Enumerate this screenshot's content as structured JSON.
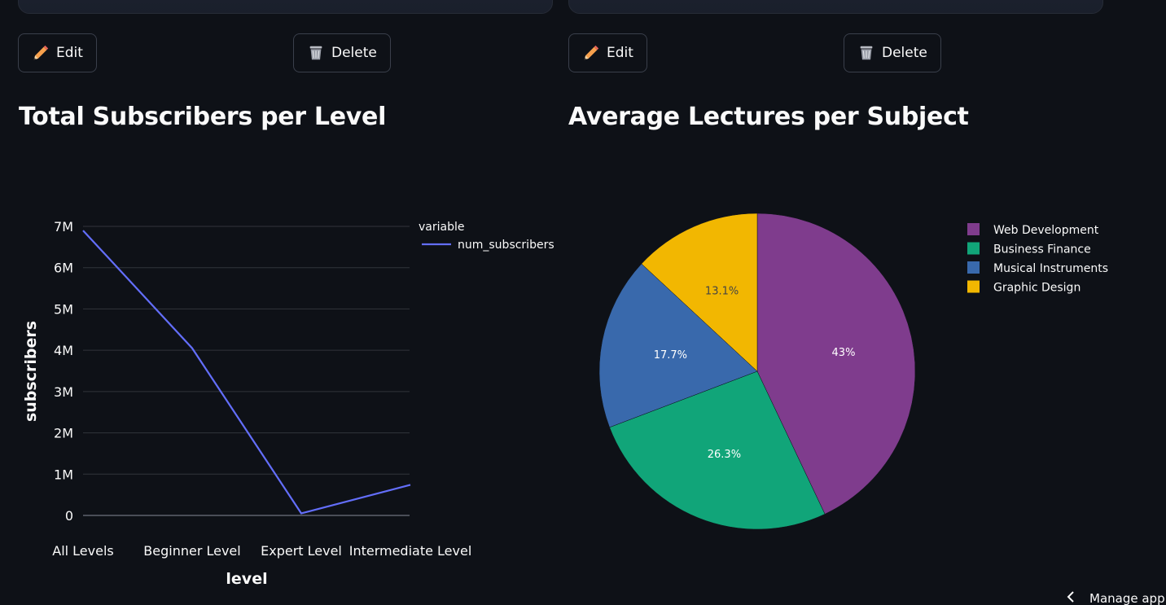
{
  "buttons": {
    "edit_label": "Edit",
    "delete_label": "Delete"
  },
  "colors": {
    "background": "#0e1117",
    "line_series": "#636efa",
    "pie": [
      "#7f3c8d",
      "#11a579",
      "#3969ac",
      "#f2b701"
    ]
  },
  "footer": {
    "manage_label": "Manage app"
  },
  "chart_data": [
    {
      "type": "line",
      "title": "Total Subscribers per Level",
      "xlabel": "level",
      "ylabel": "subscribers",
      "categories": [
        "All Levels",
        "Beginner Level",
        "Expert Level",
        "Intermediate Level"
      ],
      "series": [
        {
          "name": "num_subscribers",
          "values": [
            6900000,
            4050000,
            50000,
            740000
          ]
        }
      ],
      "ylim": [
        0,
        7000000
      ],
      "yticks": [
        0,
        1000000,
        2000000,
        3000000,
        4000000,
        5000000,
        6000000,
        7000000
      ],
      "ytick_labels": [
        "0",
        "1M",
        "2M",
        "3M",
        "4M",
        "5M",
        "6M",
        "7M"
      ],
      "legend_title": "variable",
      "legend": "right",
      "grid": true
    },
    {
      "type": "pie",
      "title": "Average Lectures per Subject",
      "labels": [
        "Web Development",
        "Business Finance",
        "Musical Instruments",
        "Graphic Design"
      ],
      "values": [
        43,
        26.3,
        17.7,
        13.1
      ],
      "value_labels": [
        "43%",
        "26.3%",
        "17.7%",
        "13.1%"
      ],
      "legend": "right"
    }
  ]
}
